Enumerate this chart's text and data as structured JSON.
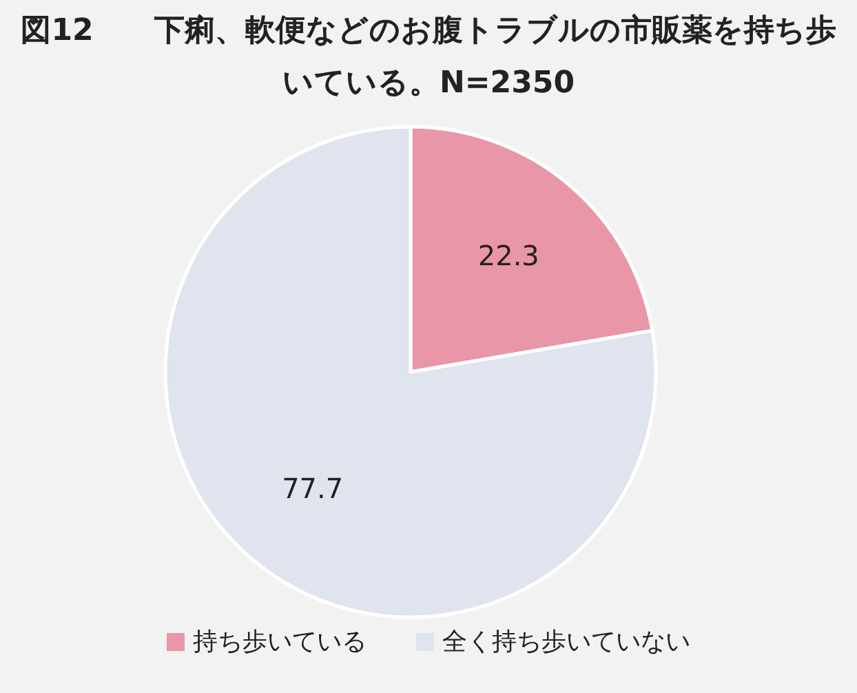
{
  "chart_data": {
    "type": "pie",
    "title": "図12　　下痢、軟便などのお腹トラブルの市販薬を持ち歩いている。N=2350",
    "categories": [
      "持ち歩いている",
      "全く持ち歩いていない"
    ],
    "values": [
      22.3,
      77.7
    ],
    "colors": [
      "#e896a8",
      "#dfe4ee"
    ],
    "data_labels": true,
    "legend": "bottom"
  }
}
